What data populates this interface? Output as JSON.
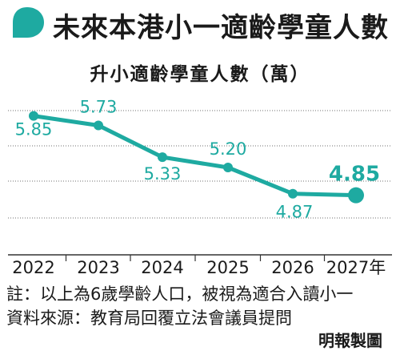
{
  "colors": {
    "accent": "#1eaaa1",
    "grid": "#6f6f6f",
    "text": "#1a1a1a"
  },
  "icons": {
    "header": "speech-bubble-icon"
  },
  "title": "未來本港小一適齡學童人數",
  "chart_data": {
    "type": "line",
    "title": "升小適齡學童人數（萬）",
    "categories": [
      "2022",
      "2023",
      "2024",
      "2025",
      "2026",
      "2027年"
    ],
    "values": [
      5.85,
      5.73,
      5.33,
      5.2,
      4.87,
      4.85
    ],
    "value_labels": [
      "5.85",
      "5.73",
      "5.33",
      "5.20",
      "4.87",
      "4.85"
    ],
    "highlight_last": true,
    "ylim": [
      4.1,
      6.3
    ],
    "grid": true,
    "legend": "none"
  },
  "notes": {
    "note1": "註：以上為6歲學齡人口，被視為適合入讀小一",
    "note2": "資料來源：教育局回覆立法會議員提問"
  },
  "credit": "明報製圖"
}
